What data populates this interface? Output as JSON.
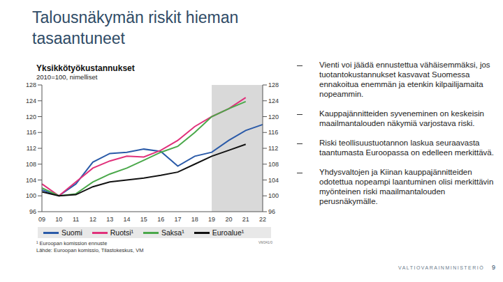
{
  "heading": [
    "Talousnäkymän riskit hieman",
    "tasaantuneet"
  ],
  "bullets": [
    "Vienti voi jäädä ennustettua vähäisemmäksi, jos tuotantokustannukset kasvavat Suomessa ennakoitua enemmän ja etenkin kilpailijamaita nopeammin.",
    "Kauppajännitteiden syveneminen on keskeisin maailmantalouden näkymiä varjostava riski.",
    "Riski teollisuustuotannon laskua seuraavasta taantumasta Euroopassa on edelleen merkittävä.",
    "Yhdysvaltojen ja Kiinan kauppajännitteiden odotettua nopeampi laantuminen olisi merkittävin myönteinen riski maailmantalouden perusnäkymälle."
  ],
  "footer": "VALTIOVARAINMINISTERIÖ",
  "page": "9",
  "chart_data": {
    "type": "line",
    "title": "Yksikkötyökustannukset",
    "subtitle": "2010=100, nimelliset",
    "notes": [
      "¹ Euroopan komission ennuste",
      "Lähde: Euroopan komissio, Tilastokeskus, VM"
    ],
    "source_code": "VM341/0",
    "categories": [
      "09",
      "10",
      "11",
      "12",
      "13",
      "14",
      "15",
      "16",
      "17",
      "18",
      "19",
      "20",
      "21",
      "22"
    ],
    "forecast_start": "19",
    "forecast_end": "22",
    "series": [
      {
        "name": "Suomi",
        "color": "#2a5aa8",
        "values": [
          101.5,
          100,
          103,
          108.5,
          110.7,
          111,
          111.8,
          111.2,
          107.5,
          110,
          111,
          114,
          116.5,
          118
        ]
      },
      {
        "name": "Ruotsi¹",
        "color": "#e0307a",
        "values": [
          103,
          100,
          103.5,
          107,
          108.8,
          110,
          109.8,
          111.5,
          114,
          117.5,
          120,
          122,
          124.8,
          null
        ]
      },
      {
        "name": "Saksa¹",
        "color": "#4aa84a",
        "values": [
          102,
          100,
          100.5,
          103.5,
          105.5,
          107,
          109,
          111,
          112.5,
          116,
          120,
          122,
          123.8,
          null
        ]
      },
      {
        "name": "Euroalue¹",
        "color": "#111111",
        "values": [
          101,
          100,
          100.3,
          102.3,
          103.5,
          104,
          104.5,
          105.2,
          106,
          108,
          110,
          111.5,
          113,
          null
        ]
      }
    ],
    "ylim": [
      96,
      128
    ],
    "yticks": [
      96,
      100,
      104,
      108,
      112,
      116,
      120,
      124,
      128
    ],
    "grid": false,
    "legend": "bottom"
  }
}
